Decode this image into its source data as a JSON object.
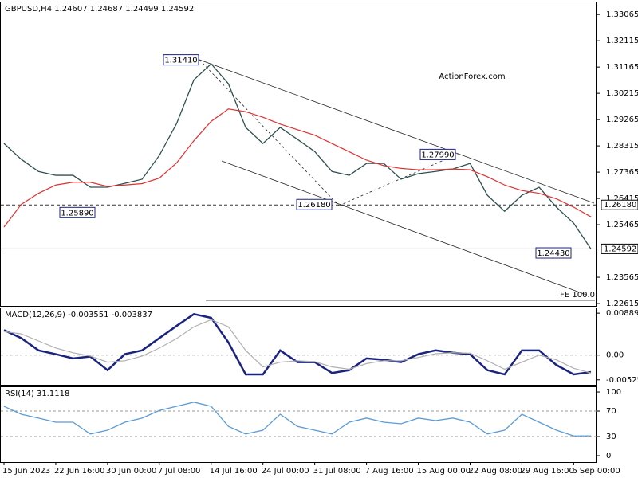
{
  "chart_data": [
    {
      "type": "line",
      "title": "GBPUSD,H4  1.24607 1.24687 1.24499 1.24592",
      "watermark": "ActionForex.com",
      "categories": [
        "15 Jun 2023",
        null,
        null,
        "22 Jun 16:00",
        null,
        null,
        "30 Jun 00:00",
        null,
        null,
        "7 Jul 08:00",
        null,
        null,
        "14 Jul 16:00",
        null,
        null,
        "24 Jul 00:00",
        null,
        null,
        "31 Jul 08:00",
        null,
        null,
        "7 Aug 16:00",
        null,
        null,
        "15 Aug 00:00",
        null,
        null,
        "22 Aug 08:00",
        null,
        null,
        "29 Aug 16:00",
        null,
        null,
        "6 Sep 00:00",
        null
      ],
      "series": [
        {
          "color": "#2f4f4f",
          "values": [
            1.284,
            1.2783,
            1.2739,
            1.2725,
            1.2725,
            1.2682,
            1.2682,
            1.2696,
            1.2711,
            1.2797,
            1.2912,
            1.307,
            1.3128,
            1.3056,
            1.2898,
            1.284,
            1.2898,
            1.2855,
            1.2811,
            1.2739,
            1.2725,
            1.2768,
            1.2768,
            1.2711,
            1.2731,
            1.2739,
            1.2748,
            1.2768,
            1.2653,
            1.2595,
            1.2653,
            1.2682,
            1.261,
            1.2552,
            1.2459
          ]
        },
        {
          "color": "#e03030",
          "values": [
            1.2538,
            1.262,
            1.266,
            1.269,
            1.27,
            1.27,
            1.2685,
            1.269,
            1.2695,
            1.2715,
            1.277,
            1.285,
            1.292,
            1.2965,
            1.2955,
            1.2935,
            1.291,
            1.289,
            1.287,
            1.284,
            1.281,
            1.278,
            1.276,
            1.275,
            1.2745,
            1.2745,
            1.2748,
            1.2745,
            1.272,
            1.269,
            1.267,
            1.266,
            1.264,
            1.261,
            1.2575
          ]
        }
      ],
      "ylim": [
        1.2253,
        1.3353
      ],
      "yticks": [
        1.33065,
        1.32115,
        1.31165,
        1.30215,
        1.29265,
        1.28315,
        1.27365,
        1.26415,
        1.25465,
        1.23565,
        1.22615
      ],
      "annotations": [
        {
          "value": 1.3141,
          "label": "1.31410"
        },
        {
          "value": 1.2589,
          "label": "1.25890"
        },
        {
          "value": 1.2618,
          "label": "1.26180"
        },
        {
          "value": 1.2799,
          "label": "1.27990"
        },
        {
          "value": 1.2443,
          "label": "1.24430"
        }
      ],
      "hline": {
        "value": 1.2618,
        "label": "1.26180"
      },
      "last_price": 1.24592,
      "fe_line": {
        "value": 1.2273,
        "label": "FE 100.0"
      }
    },
    {
      "type": "line",
      "title": "MACD(12,26,9) -0.003551 -0.003837",
      "series": [
        {
          "color": "#1a237e",
          "values": [
            0.0053,
            0.0036,
            0.001,
            0.0002,
            -0.0007,
            -0.0003,
            -0.0032,
            0.0002,
            0.001,
            0.0036,
            0.0062,
            0.0087,
            0.0079,
            0.0027,
            -0.0041,
            -0.0041,
            0.001,
            -0.0015,
            -0.0015,
            -0.0038,
            -0.0032,
            -0.0007,
            -0.001,
            -0.0015,
            0.0002,
            0.001,
            0.0005,
            0.0002,
            -0.0032,
            -0.0041,
            0.001,
            0.001,
            -0.0021,
            -0.0041,
            -0.0036
          ]
        },
        {
          "color": "#b0b0b0",
          "values": [
            0.005,
            0.0045,
            0.003,
            0.0015,
            0.0005,
            -0.0002,
            -0.0015,
            -0.0012,
            -0.0002,
            0.0015,
            0.0035,
            0.006,
            0.0075,
            0.006,
            0.001,
            -0.0025,
            -0.0015,
            -0.0012,
            -0.0014,
            -0.0025,
            -0.003,
            -0.0018,
            -0.0012,
            -0.0012,
            -0.0005,
            0.0003,
            0.0005,
            0.0004,
            -0.0012,
            -0.003,
            -0.0015,
            0.0,
            -0.001,
            -0.0028,
            -0.0038
          ]
        }
      ],
      "ylim": [
        -0.0063,
        0.0101
      ],
      "yticks": [
        0.008894,
        {
          "value": 0,
          "label": "0.00"
        },
        -0.005252
      ],
      "levels": [
        0
      ]
    },
    {
      "type": "line",
      "title": "RSI(14) 31.1118",
      "series": [
        {
          "color": "#5b9bd5",
          "values": [
            77.5,
            65,
            59,
            52.5,
            52.5,
            34,
            40,
            52.5,
            59,
            71,
            77.5,
            84,
            77.5,
            46,
            34,
            40,
            65,
            46,
            40,
            34,
            52.5,
            59,
            52.5,
            50,
            59,
            55,
            59,
            52.5,
            34,
            40,
            65,
            52.5,
            40,
            31,
            31.1
          ]
        }
      ],
      "ylim": [
        -10,
        108.8
      ],
      "yticks": [
        100,
        70,
        30,
        0
      ],
      "levels": [
        70,
        30
      ]
    }
  ]
}
